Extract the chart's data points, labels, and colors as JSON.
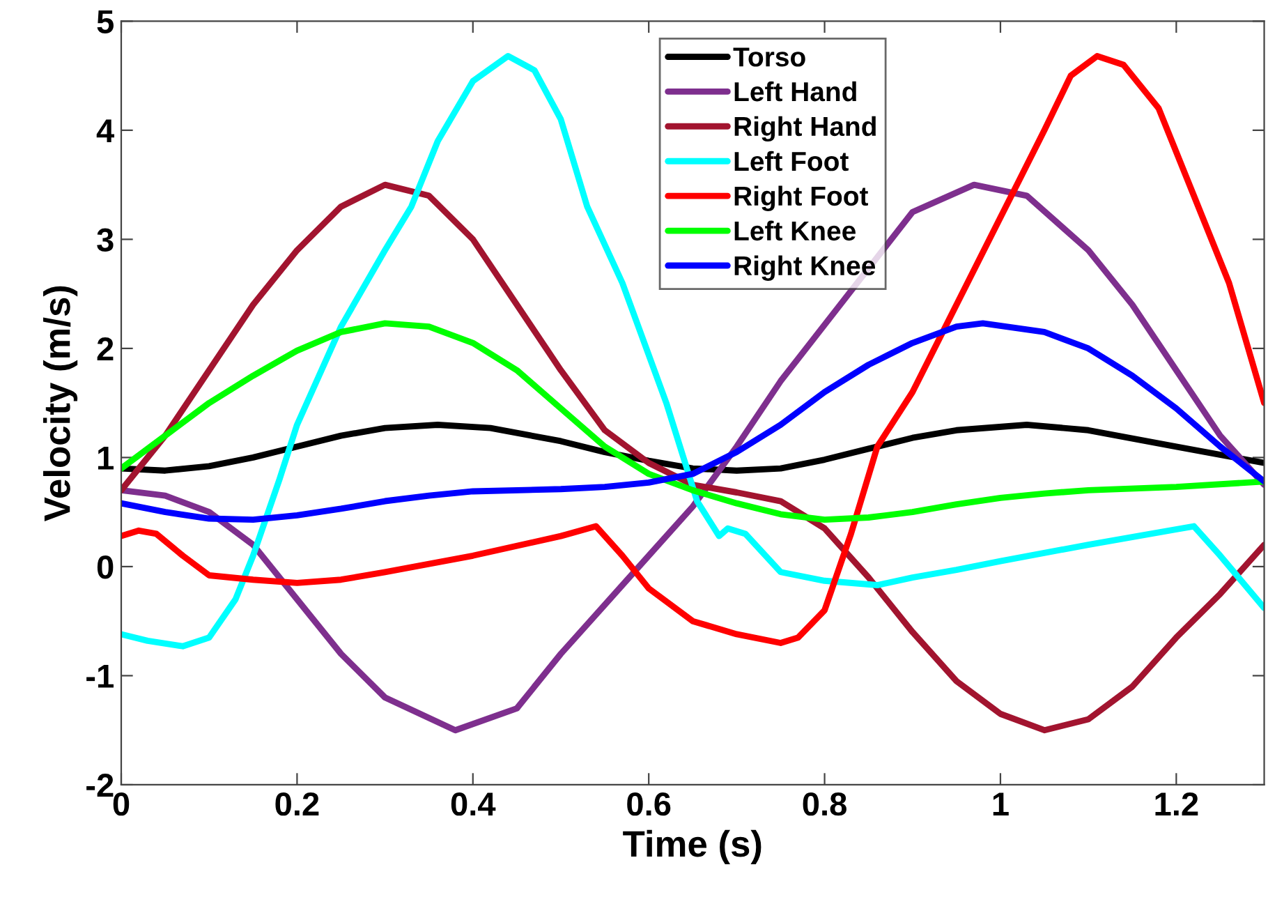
{
  "chart_data": {
    "type": "line",
    "xlabel": "Time (s)",
    "ylabel": "Velocity (m/s)",
    "xlim": [
      0,
      1.3
    ],
    "ylim": [
      -2,
      5
    ],
    "xticks": [
      0,
      0.2,
      0.4,
      0.6,
      0.8,
      1,
      1.2
    ],
    "yticks": [
      -2,
      -1,
      0,
      1,
      2,
      3,
      4,
      5
    ],
    "grid": false,
    "legend": "top",
    "marker": "none",
    "line_style": "solid",
    "series": [
      {
        "name": "Torso",
        "color": "#000000",
        "x": [
          0,
          0.05,
          0.1,
          0.15,
          0.2,
          0.25,
          0.3,
          0.36,
          0.42,
          0.5,
          0.55,
          0.6,
          0.65,
          0.7,
          0.75,
          0.8,
          0.85,
          0.9,
          0.95,
          1.03,
          1.1,
          1.2,
          1.3
        ],
        "values": [
          0.9,
          0.88,
          0.92,
          1.0,
          1.1,
          1.2,
          1.27,
          1.3,
          1.27,
          1.15,
          1.05,
          0.97,
          0.9,
          0.88,
          0.9,
          0.98,
          1.08,
          1.18,
          1.25,
          1.3,
          1.25,
          1.1,
          0.95
        ]
      },
      {
        "name": "Left Hand",
        "color": "#7e2f8e",
        "x": [
          0,
          0.05,
          0.1,
          0.15,
          0.2,
          0.25,
          0.3,
          0.38,
          0.45,
          0.5,
          0.55,
          0.6,
          0.65,
          0.7,
          0.75,
          0.9,
          0.97,
          1.03,
          1.1,
          1.15,
          1.2,
          1.25,
          1.3
        ],
        "values": [
          0.7,
          0.65,
          0.5,
          0.2,
          -0.3,
          -0.8,
          -1.2,
          -1.5,
          -1.3,
          -0.8,
          -0.35,
          0.1,
          0.55,
          1.1,
          1.7,
          3.25,
          3.5,
          3.4,
          2.9,
          2.4,
          1.8,
          1.2,
          0.75
        ]
      },
      {
        "name": "Right Hand",
        "color": "#a2142f",
        "x": [
          0,
          0.05,
          0.1,
          0.15,
          0.2,
          0.25,
          0.3,
          0.35,
          0.4,
          0.45,
          0.5,
          0.55,
          0.6,
          0.65,
          0.7,
          0.75,
          0.8,
          0.85,
          0.9,
          0.95,
          1.0,
          1.05,
          1.1,
          1.15,
          1.2,
          1.25,
          1.3
        ],
        "values": [
          0.7,
          1.2,
          1.8,
          2.4,
          2.9,
          3.3,
          3.5,
          3.4,
          3.0,
          2.4,
          1.8,
          1.25,
          0.95,
          0.75,
          0.68,
          0.6,
          0.35,
          -0.1,
          -0.6,
          -1.05,
          -1.35,
          -1.5,
          -1.4,
          -1.1,
          -0.65,
          -0.25,
          0.2
        ]
      },
      {
        "name": "Left Foot",
        "color": "#00ffff",
        "x": [
          0,
          0.03,
          0.07,
          0.1,
          0.13,
          0.15,
          0.18,
          0.2,
          0.25,
          0.3,
          0.33,
          0.36,
          0.4,
          0.44,
          0.47,
          0.5,
          0.53,
          0.57,
          0.62,
          0.655,
          0.68,
          0.69,
          0.71,
          0.75,
          0.8,
          0.86,
          0.9,
          0.95,
          1.0,
          1.1,
          1.22,
          1.25,
          1.3
        ],
        "values": [
          -0.62,
          -0.68,
          -0.73,
          -0.65,
          -0.3,
          0.1,
          0.8,
          1.3,
          2.2,
          2.9,
          3.3,
          3.9,
          4.45,
          4.68,
          4.55,
          4.1,
          3.3,
          2.6,
          1.5,
          0.6,
          0.28,
          0.35,
          0.3,
          -0.05,
          -0.13,
          -0.17,
          -0.1,
          -0.03,
          0.05,
          0.2,
          0.37,
          0.1,
          -0.38
        ]
      },
      {
        "name": "Right Foot",
        "color": "#ff0000",
        "x": [
          0,
          0.02,
          0.04,
          0.07,
          0.1,
          0.15,
          0.2,
          0.25,
          0.3,
          0.4,
          0.5,
          0.54,
          0.57,
          0.6,
          0.65,
          0.7,
          0.75,
          0.77,
          0.8,
          0.83,
          0.86,
          0.9,
          0.95,
          1.0,
          1.05,
          1.08,
          1.11,
          1.14,
          1.18,
          1.22,
          1.26,
          1.3
        ],
        "values": [
          0.28,
          0.33,
          0.3,
          0.1,
          -0.08,
          -0.12,
          -0.15,
          -0.12,
          -0.05,
          0.1,
          0.28,
          0.37,
          0.1,
          -0.2,
          -0.5,
          -0.62,
          -0.7,
          -0.65,
          -0.4,
          0.3,
          1.1,
          1.6,
          2.4,
          3.2,
          4.0,
          4.5,
          4.68,
          4.6,
          4.2,
          3.4,
          2.6,
          1.5
        ]
      },
      {
        "name": "Left Knee",
        "color": "#00ff00",
        "x": [
          0,
          0.05,
          0.1,
          0.15,
          0.2,
          0.25,
          0.3,
          0.35,
          0.4,
          0.45,
          0.5,
          0.55,
          0.6,
          0.65,
          0.7,
          0.75,
          0.8,
          0.85,
          0.9,
          0.95,
          1.0,
          1.05,
          1.1,
          1.2,
          1.3
        ],
        "values": [
          0.9,
          1.2,
          1.5,
          1.75,
          1.98,
          2.15,
          2.23,
          2.2,
          2.05,
          1.8,
          1.45,
          1.1,
          0.85,
          0.7,
          0.58,
          0.48,
          0.43,
          0.45,
          0.5,
          0.57,
          0.63,
          0.67,
          0.7,
          0.73,
          0.78
        ]
      },
      {
        "name": "Right Knee",
        "color": "#0000ff",
        "x": [
          0,
          0.05,
          0.1,
          0.15,
          0.2,
          0.25,
          0.3,
          0.35,
          0.4,
          0.5,
          0.55,
          0.6,
          0.65,
          0.7,
          0.75,
          0.8,
          0.85,
          0.9,
          0.95,
          0.98,
          1.05,
          1.1,
          1.15,
          1.2,
          1.25,
          1.3
        ],
        "values": [
          0.58,
          0.5,
          0.44,
          0.43,
          0.47,
          0.53,
          0.6,
          0.65,
          0.69,
          0.71,
          0.73,
          0.77,
          0.85,
          1.05,
          1.3,
          1.6,
          1.85,
          2.05,
          2.2,
          2.23,
          2.15,
          2.0,
          1.75,
          1.45,
          1.1,
          0.78
        ]
      }
    ]
  }
}
